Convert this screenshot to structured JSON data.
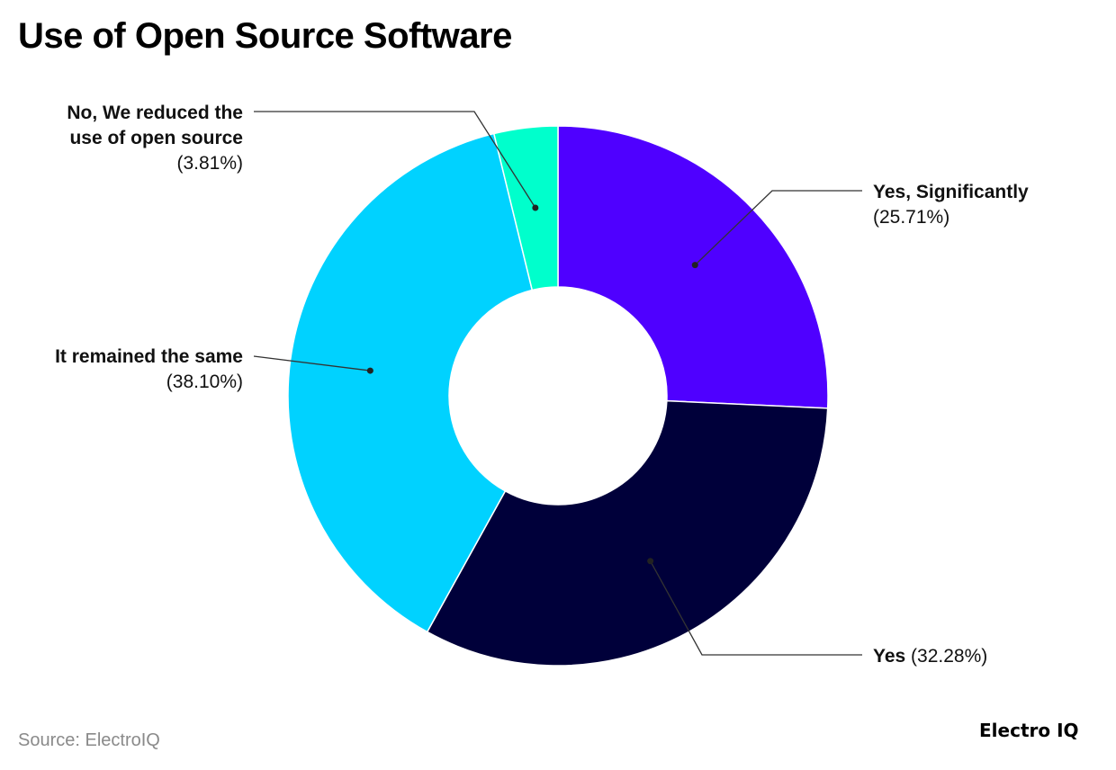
{
  "title": "Use of Open Source Software",
  "source": "Source: ElectroIQ",
  "brand": "Electro IQ",
  "chart_data": {
    "type": "pie",
    "donut": true,
    "title": "Use of Open Source Software",
    "slices": [
      {
        "name": "Yes, Significantly",
        "value": 25.71,
        "value_label": "(25.71%)",
        "color": "#4f00ff"
      },
      {
        "name": "Yes",
        "value": 32.28,
        "value_label": "(32.28%)",
        "color": "#00003a"
      },
      {
        "name": "It remained the same",
        "value": 38.1,
        "value_label": "(38.10%)",
        "color": "#00d2ff"
      },
      {
        "name": "No, We reduced the use of open source",
        "value": 3.81,
        "value_label": "(3.81%)",
        "color": "#00ffcc"
      }
    ],
    "start_angle": "12 o'clock",
    "direction": "clockwise",
    "legend": "none"
  }
}
